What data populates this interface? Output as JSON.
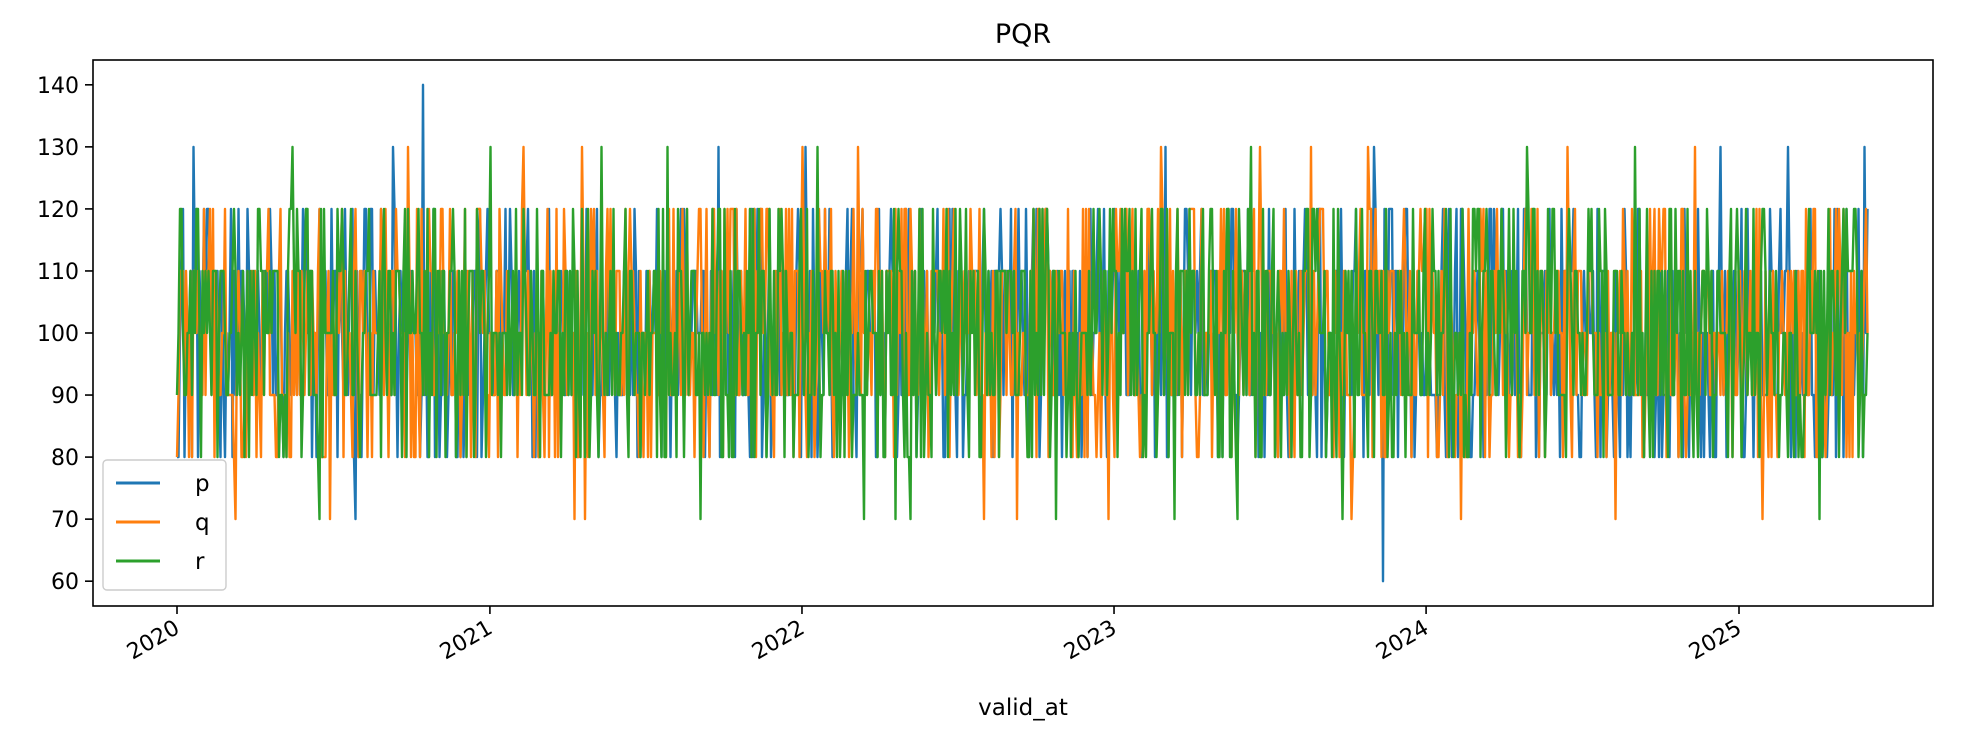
{
  "chart_data": {
    "type": "line",
    "title": "PQR",
    "xlabel": "valid_at",
    "ylabel": "",
    "x_start": "2020-01-01",
    "x_end": "2025-06-01",
    "x_tick_labels": [
      "2020",
      "2021",
      "2022",
      "2023",
      "2024",
      "2025"
    ],
    "y_tick_labels": [
      "60",
      "70",
      "80",
      "90",
      "100",
      "110",
      "120",
      "130",
      "140"
    ],
    "ylim": [
      56,
      144
    ],
    "legend_position": "lower-left",
    "grid": false,
    "series": [
      {
        "name": "p",
        "color": "#1f77b4",
        "typical_values": [
          80,
          90,
          100,
          110,
          120
        ],
        "spikes": [
          {
            "x": "2020-01-20",
            "value": 130
          },
          {
            "x": "2020-07-28",
            "value": 70
          },
          {
            "x": "2020-09-10",
            "value": 130
          },
          {
            "x": "2020-10-15",
            "value": 140
          },
          {
            "x": "2021-09-25",
            "value": 130
          },
          {
            "x": "2022-01-05",
            "value": 130
          },
          {
            "x": "2023-03-03",
            "value": 130
          },
          {
            "x": "2023-11-01",
            "value": 130
          },
          {
            "x": "2023-11-12",
            "value": 60
          },
          {
            "x": "2024-12-10",
            "value": 130
          },
          {
            "x": "2025-02-28",
            "value": 130
          },
          {
            "x": "2025-05-28",
            "value": 130
          }
        ]
      },
      {
        "name": "q",
        "color": "#ff7f0e",
        "typical_values": [
          80,
          90,
          100,
          110,
          120
        ],
        "spikes": [
          {
            "x": "2020-03-10",
            "value": 70
          },
          {
            "x": "2020-06-28",
            "value": 70
          },
          {
            "x": "2020-09-28",
            "value": 130
          },
          {
            "x": "2021-02-10",
            "value": 130
          },
          {
            "x": "2021-04-10",
            "value": 70
          },
          {
            "x": "2021-04-18",
            "value": 130
          },
          {
            "x": "2021-04-22",
            "value": 70
          },
          {
            "x": "2022-01-02",
            "value": 130
          },
          {
            "x": "2022-03-08",
            "value": 130
          },
          {
            "x": "2022-08-02",
            "value": 70
          },
          {
            "x": "2022-09-10",
            "value": 70
          },
          {
            "x": "2022-12-25",
            "value": 70
          },
          {
            "x": "2023-02-25",
            "value": 130
          },
          {
            "x": "2023-06-20",
            "value": 130
          },
          {
            "x": "2023-08-20",
            "value": 130
          },
          {
            "x": "2023-10-05",
            "value": 70
          },
          {
            "x": "2023-10-25",
            "value": 130
          },
          {
            "x": "2024-02-10",
            "value": 70
          },
          {
            "x": "2024-06-15",
            "value": 130
          },
          {
            "x": "2024-08-10",
            "value": 70
          },
          {
            "x": "2024-11-10",
            "value": 130
          },
          {
            "x": "2025-01-28",
            "value": 70
          }
        ]
      },
      {
        "name": "r",
        "color": "#2ca02c",
        "typical_values": [
          80,
          90,
          100,
          110,
          120
        ],
        "spikes": [
          {
            "x": "2020-05-15",
            "value": 130
          },
          {
            "x": "2020-06-15",
            "value": 70
          },
          {
            "x": "2021-01-01",
            "value": 130
          },
          {
            "x": "2021-05-12",
            "value": 130
          },
          {
            "x": "2021-07-28",
            "value": 130
          },
          {
            "x": "2021-09-05",
            "value": 70
          },
          {
            "x": "2022-01-20",
            "value": 130
          },
          {
            "x": "2022-03-15",
            "value": 70
          },
          {
            "x": "2022-04-20",
            "value": 70
          },
          {
            "x": "2022-05-08",
            "value": 70
          },
          {
            "x": "2022-10-25",
            "value": 70
          },
          {
            "x": "2023-03-12",
            "value": 70
          },
          {
            "x": "2023-05-25",
            "value": 70
          },
          {
            "x": "2023-06-10",
            "value": 130
          },
          {
            "x": "2023-09-25",
            "value": 70
          },
          {
            "x": "2024-04-28",
            "value": 130
          },
          {
            "x": "2024-09-01",
            "value": 130
          },
          {
            "x": "2025-04-05",
            "value": 70
          }
        ]
      }
    ]
  }
}
